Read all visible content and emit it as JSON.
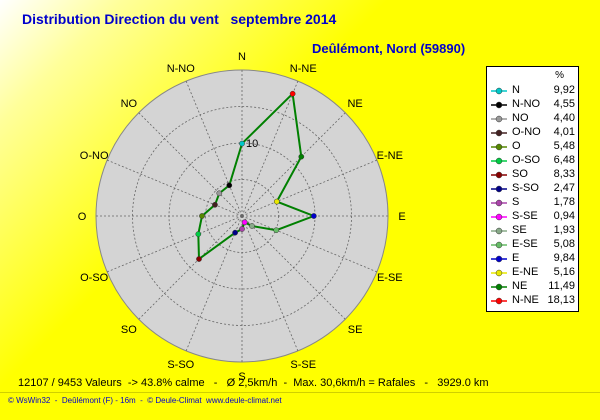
{
  "title": "Distribution Direction du vent   septembre 2014",
  "subtitle": "Deûlémont, Nord (59890)",
  "chart_data": {
    "type": "radar",
    "rmax": 20,
    "ring_step": 5,
    "ring_label": "10",
    "directions": [
      "N",
      "N-NE",
      "NE",
      "E-NE",
      "E",
      "E-SE",
      "SE",
      "S-SE",
      "S",
      "S-SO",
      "SO",
      "O-SO",
      "O",
      "O-NO",
      "NO",
      "N-NO"
    ],
    "series": [
      {
        "values": [
          9.92,
          18.13,
          11.49,
          5.16,
          9.84,
          5.08,
          1.93,
          0.94,
          1.78,
          2.47,
          8.33,
          6.48,
          5.48,
          4.01,
          4.4,
          4.55
        ],
        "color": "#008000"
      }
    ],
    "marker_colors": {
      "N": "#00c8c8",
      "N-NE": "#ff0000",
      "NE": "#008000",
      "E-NE": "#e8e800",
      "E": "#0000cc",
      "E-SE": "#66bb66",
      "SE": "#88aa88",
      "S-SE": "#ff00ff",
      "S": "#aa44aa",
      "S-SO": "#000088",
      "SO": "#880000",
      "O-SO": "#00cc44",
      "O": "#558800",
      "O-NO": "#442222",
      "NO": "#999999",
      "N-NO": "#000000"
    },
    "legend": {
      "unit": "%",
      "entries": [
        {
          "label": "N",
          "value": "9,92"
        },
        {
          "label": "N-NO",
          "value": "4,55"
        },
        {
          "label": "NO",
          "value": "4,40"
        },
        {
          "label": "O-NO",
          "value": "4,01"
        },
        {
          "label": "O",
          "value": "5,48"
        },
        {
          "label": "O-SO",
          "value": "6,48"
        },
        {
          "label": "SO",
          "value": "8,33"
        },
        {
          "label": "S-SO",
          "value": "2,47"
        },
        {
          "label": "S",
          "value": "1,78"
        },
        {
          "label": "S-SE",
          "value": "0,94"
        },
        {
          "label": "SE",
          "value": "1,93"
        },
        {
          "label": "E-SE",
          "value": "5,08"
        },
        {
          "label": "E",
          "value": "9,84"
        },
        {
          "label": "E-NE",
          "value": "5,16"
        },
        {
          "label": "NE",
          "value": "11,49"
        },
        {
          "label": "N-NE",
          "value": "18,13"
        }
      ]
    }
  },
  "stats": "12107 / 9453 Valeurs  -> 43.8% calme   -   Ø 2,5km/h  -  Max. 30,6km/h = Rafales   -   3929.0 km",
  "footer": "© WsWin32  -  Deûlémont (F) - 16m  -  © Deule-Climat  www.deule-climat.net"
}
